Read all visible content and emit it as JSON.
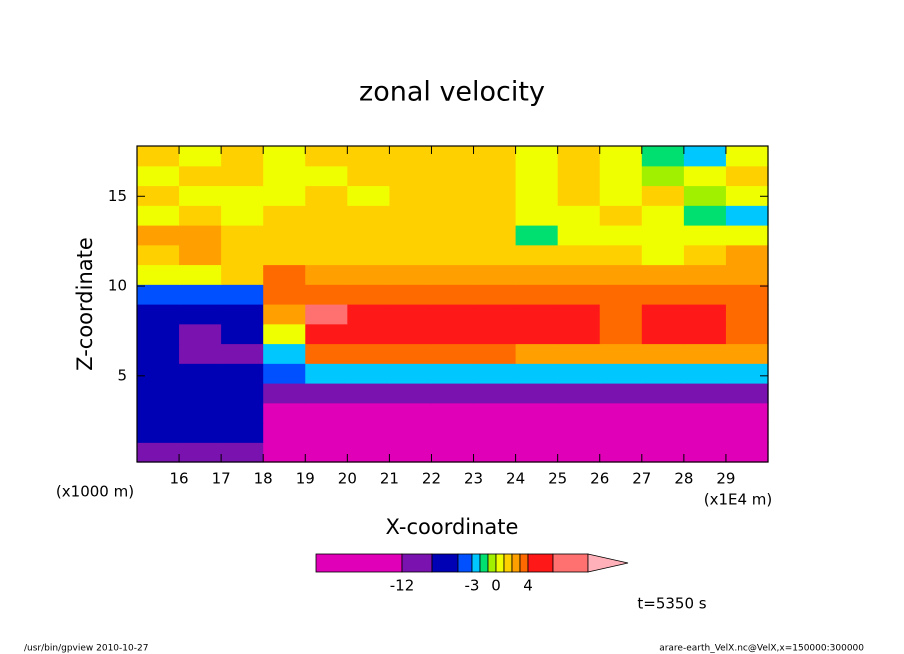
{
  "chart_data": {
    "type": "heatmap",
    "title": "zonal velocity",
    "x_label": "X-coordinate",
    "y_label": "Z-coordinate",
    "x_unit": "(x1E4 m)",
    "y_unit": "(x1000 m)",
    "time_label": "t=5350 s",
    "footer_left": "/usr/bin/gpview  2010-10-27",
    "footer_right": "arare-earth_VelX.nc@VelX,x=150000:300000",
    "xlim": [
      15,
      30
    ],
    "ylim": [
      0.2,
      17.8
    ],
    "xticks": [
      16,
      17,
      18,
      19,
      20,
      21,
      22,
      23,
      24,
      25,
      26,
      27,
      28,
      29
    ],
    "yticks": [
      5,
      10,
      15
    ],
    "x": [
      15.5,
      16.5,
      17.5,
      18.5,
      19.5,
      20.5,
      21.5,
      22.5,
      23.5,
      24.5,
      25.5,
      26.5,
      27.5,
      28.5,
      29.5
    ],
    "y": [
      0.75,
      1.85,
      2.95,
      4.05,
      5.15,
      6.25,
      7.35,
      8.45,
      9.55,
      10.65,
      11.75,
      12.85,
      13.95,
      15.05,
      16.15,
      17.25
    ],
    "values": [
      [
        -10,
        -10,
        -10,
        -13,
        -14,
        -14,
        -14,
        -14,
        -14,
        -14,
        -14,
        -14,
        -14,
        -14,
        -14
      ],
      [
        -7,
        -7,
        -7,
        -13,
        -14,
        -14,
        -14,
        -14,
        -14,
        -14,
        -14,
        -14,
        -14,
        -14,
        -14
      ],
      [
        -7,
        -7,
        -7,
        -13,
        -14,
        -14,
        -14,
        -14,
        -14,
        -14,
        -14,
        -14,
        -14,
        -14,
        -14
      ],
      [
        -7,
        -7,
        -7,
        -10,
        -10,
        -10,
        -10,
        -10,
        -10,
        -10,
        -10,
        -10,
        -10,
        -10,
        -10
      ],
      [
        -7,
        -7,
        -7,
        -6,
        -2.5,
        -2.5,
        -2.5,
        -2.5,
        -2.5,
        -2.5,
        -2.5,
        -2.5,
        -2.5,
        -2.5,
        -2.5
      ],
      [
        -7,
        -10,
        -10,
        -3,
        3.5,
        3,
        3,
        3,
        3,
        2.5,
        2.5,
        2.5,
        2.5,
        2.5,
        2.5
      ],
      [
        -7,
        -10,
        -9,
        0,
        6,
        5,
        5,
        5,
        5,
        5,
        5,
        3.5,
        5,
        5,
        3.5
      ],
      [
        -7,
        -7,
        -7,
        2,
        9,
        5,
        5,
        5,
        5,
        5,
        5,
        3.5,
        4.5,
        4.5,
        3.5
      ],
      [
        -4,
        -4,
        -4,
        3.5,
        3.5,
        3.5,
        3.5,
        3.5,
        3.5,
        3.5,
        3.5,
        3.5,
        3.5,
        3.5,
        3.5
      ],
      [
        0.5,
        0.5,
        1.5,
        3,
        2.5,
        2.5,
        2.5,
        2.5,
        2.5,
        2.5,
        2.5,
        2.5,
        2.5,
        2.5,
        2.5
      ],
      [
        1.5,
        2.5,
        1.5,
        1.5,
        1.5,
        1.5,
        1.5,
        1.5,
        1.5,
        1.5,
        1.5,
        1.5,
        0.5,
        1.5,
        2.5
      ],
      [
        2.5,
        2.5,
        1.5,
        1.5,
        1.5,
        1.5,
        1.5,
        1.5,
        1.5,
        -1.5,
        0.5,
        0.5,
        0.5,
        0.5,
        0.5
      ],
      [
        0.5,
        1.5,
        0.5,
        1.5,
        1.5,
        1.5,
        1.5,
        1.5,
        1.5,
        0.5,
        0.5,
        1.5,
        0.5,
        -1.5,
        -2.5
      ],
      [
        1.5,
        0.5,
        0.5,
        0.5,
        1.5,
        0.5,
        1.5,
        1.5,
        1.5,
        0.5,
        1.5,
        0.5,
        1.5,
        -0.5,
        0.5
      ],
      [
        0.5,
        1.5,
        1.5,
        0.5,
        0.5,
        1.5,
        1.5,
        1.5,
        1.5,
        0.5,
        1.5,
        0.5,
        -0.5,
        0.5,
        1.5
      ],
      [
        1.5,
        0.5,
        1.5,
        0.5,
        1.5,
        1.5,
        1.5,
        1.5,
        1.5,
        0.5,
        1.5,
        0.5,
        -1.5,
        -2.5,
        0.5
      ]
    ],
    "levels": [
      -12,
      -9,
      -6,
      -3,
      -2,
      -1,
      0,
      1,
      2,
      3,
      4,
      8,
      12
    ],
    "colors": [
      "#e000b8",
      "#7a12b0",
      "#0000b4",
      "#0050ff",
      "#00c8ff",
      "#00e070",
      "#a0f000",
      "#f0ff00",
      "#ffd000",
      "#ffa000",
      "#ff6a00",
      "#ff1818",
      "#ff7070",
      "#ffb0b8"
    ],
    "colorbar_ticks": [
      -12,
      -3,
      0,
      4
    ]
  }
}
